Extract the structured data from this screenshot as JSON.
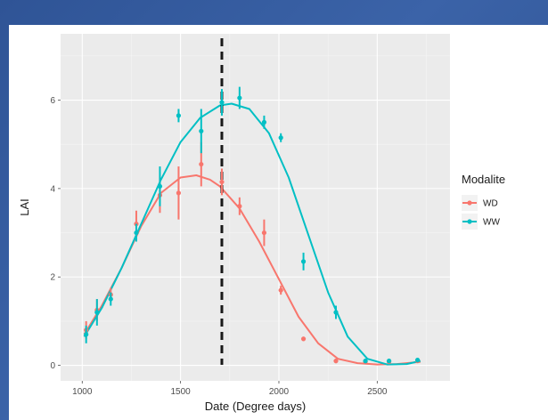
{
  "chart_data": {
    "type": "scatter",
    "xlabel": "Date (Degree days)",
    "ylabel": "LAI",
    "xlim": [
      890,
      2870
    ],
    "ylim": [
      -0.35,
      7.5
    ],
    "xticks": [
      1000,
      1500,
      2000,
      2500
    ],
    "yticks": [
      0,
      2,
      4,
      6
    ],
    "grid": true,
    "legend": {
      "title": "Modalite",
      "position": "right"
    },
    "vline": {
      "x": 1710,
      "style": "dashed",
      "color": "#1a1a1a"
    },
    "series": [
      {
        "name": "WD",
        "color": "#f8766d",
        "points": [
          {
            "x": 1020,
            "y": 0.8,
            "err": 0.2
          },
          {
            "x": 1075,
            "y": 1.25,
            "err": 0.25
          },
          {
            "x": 1145,
            "y": 1.6,
            "err": 0.15
          },
          {
            "x": 1275,
            "y": 3.2,
            "err": 0.3
          },
          {
            "x": 1395,
            "y": 3.85,
            "err": 0.4
          },
          {
            "x": 1490,
            "y": 3.9,
            "err": 0.6
          },
          {
            "x": 1605,
            "y": 4.55,
            "err": 0.5
          },
          {
            "x": 1710,
            "y": 4.15,
            "err": 0.3
          },
          {
            "x": 1800,
            "y": 3.6,
            "err": 0.2
          },
          {
            "x": 1925,
            "y": 3.0,
            "err": 0.3
          },
          {
            "x": 2010,
            "y": 1.7,
            "err": 0.1
          },
          {
            "x": 2125,
            "y": 0.6,
            "err": 0.05
          },
          {
            "x": 2290,
            "y": 0.1,
            "err": 0.05
          },
          {
            "x": 2440,
            "y": 0.08,
            "err": 0.03
          },
          {
            "x": 2560,
            "y": 0.08,
            "err": 0.03
          },
          {
            "x": 2705,
            "y": 0.1,
            "err": 0.03
          }
        ],
        "fit": [
          [
            1010,
            0.7
          ],
          [
            1100,
            1.35
          ],
          [
            1200,
            2.2
          ],
          [
            1300,
            3.15
          ],
          [
            1400,
            3.9
          ],
          [
            1500,
            4.25
          ],
          [
            1580,
            4.3
          ],
          [
            1650,
            4.2
          ],
          [
            1700,
            4.05
          ],
          [
            1800,
            3.55
          ],
          [
            1900,
            2.8
          ],
          [
            2000,
            1.95
          ],
          [
            2100,
            1.1
          ],
          [
            2200,
            0.5
          ],
          [
            2300,
            0.15
          ],
          [
            2400,
            0.05
          ],
          [
            2500,
            0.02
          ],
          [
            2600,
            0.03
          ],
          [
            2720,
            0.08
          ]
        ]
      },
      {
        "name": "WW",
        "color": "#00bfc4",
        "points": [
          {
            "x": 1020,
            "y": 0.7,
            "err": 0.2
          },
          {
            "x": 1075,
            "y": 1.2,
            "err": 0.3
          },
          {
            "x": 1145,
            "y": 1.5,
            "err": 0.15
          },
          {
            "x": 1275,
            "y": 3.0,
            "err": 0.2
          },
          {
            "x": 1395,
            "y": 4.05,
            "err": 0.45
          },
          {
            "x": 1490,
            "y": 5.65,
            "err": 0.15
          },
          {
            "x": 1605,
            "y": 5.3,
            "err": 0.5
          },
          {
            "x": 1710,
            "y": 5.95,
            "err": 0.3
          },
          {
            "x": 1800,
            "y": 6.05,
            "err": 0.25
          },
          {
            "x": 1925,
            "y": 5.5,
            "err": 0.15
          },
          {
            "x": 2010,
            "y": 5.15,
            "err": 0.1
          },
          {
            "x": 2125,
            "y": 2.35,
            "err": 0.2
          },
          {
            "x": 2290,
            "y": 1.2,
            "err": 0.15
          },
          {
            "x": 2440,
            "y": 0.1,
            "err": 0.05
          },
          {
            "x": 2560,
            "y": 0.1,
            "err": 0.05
          },
          {
            "x": 2705,
            "y": 0.12,
            "err": 0.05
          }
        ],
        "fit": [
          [
            1010,
            0.65
          ],
          [
            1100,
            1.3
          ],
          [
            1200,
            2.2
          ],
          [
            1300,
            3.2
          ],
          [
            1400,
            4.2
          ],
          [
            1500,
            5.05
          ],
          [
            1600,
            5.6
          ],
          [
            1700,
            5.88
          ],
          [
            1760,
            5.92
          ],
          [
            1850,
            5.8
          ],
          [
            1950,
            5.25
          ],
          [
            2050,
            4.25
          ],
          [
            2150,
            2.95
          ],
          [
            2250,
            1.65
          ],
          [
            2350,
            0.65
          ],
          [
            2450,
            0.15
          ],
          [
            2550,
            0.02
          ],
          [
            2650,
            0.03
          ],
          [
            2720,
            0.1
          ]
        ]
      }
    ]
  }
}
